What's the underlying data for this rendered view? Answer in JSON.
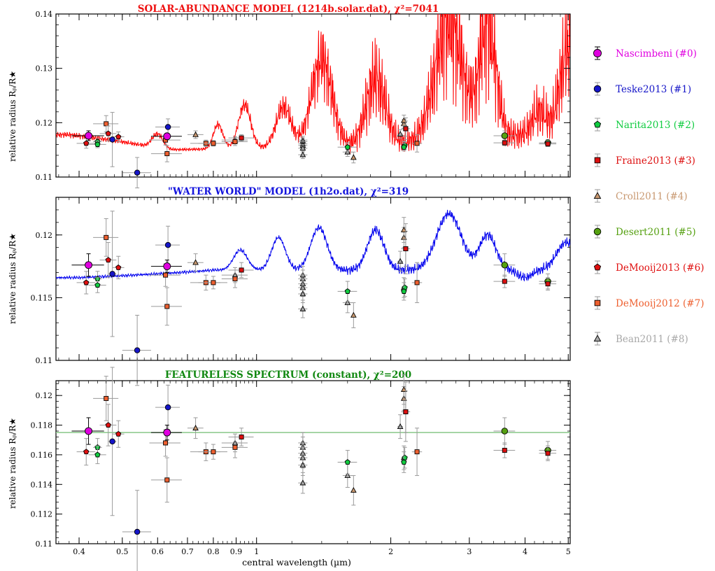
{
  "chart_data": {
    "type": "scatter",
    "xlabel": "central wavelength (µm)",
    "x_scale": "log",
    "xlim": [
      0.355,
      5.05
    ],
    "x_ticks": [
      0.4,
      0.5,
      0.6,
      0.7,
      0.8,
      0.9,
      1,
      2,
      3,
      4,
      5
    ],
    "x_tick_labels": [
      "0.4",
      "0.5",
      "0.6",
      "0.7",
      "0.8",
      "0.9",
      "1",
      "2",
      "3",
      "4",
      "5"
    ],
    "ylabel": "relative radius Rₚ/R★",
    "legend_position": "right",
    "legend": [
      {
        "label": "Nascimbeni (#0)",
        "color": "#e000e0",
        "marker": "circle"
      },
      {
        "label": "Teske2013 (#1)",
        "color": "#1515c8",
        "marker": "circle"
      },
      {
        "label": "Narita2013 (#2)",
        "color": "#10cc40",
        "marker": "pentagon"
      },
      {
        "label": "Fraine2013 (#3)",
        "color": "#dd1010",
        "marker": "square"
      },
      {
        "label": "Croll2011 (#4)",
        "color": "#c89870",
        "marker": "triangle"
      },
      {
        "label": "Desert2011 (#5)",
        "color": "#55a010",
        "marker": "circle"
      },
      {
        "label": "DeMooij2013 (#6)",
        "color": "#e01010",
        "marker": "pentagon"
      },
      {
        "label": "DeMooij2012 (#7)",
        "color": "#ee6030",
        "marker": "square"
      },
      {
        "label": "Bean2011 (#8)",
        "color": "#a8a8a8",
        "marker": "triangle"
      }
    ],
    "panels": [
      {
        "title": "SOLAR-ABUNDANCE MODEL (1214b.solar.dat), χ²=7041",
        "title_color": "#ee1111",
        "ylim": [
          0.11,
          0.14
        ],
        "y_ticks": [
          0.11,
          0.12,
          0.13,
          0.14
        ],
        "y_tick_labels": [
          "0.11",
          "0.12",
          "0.13",
          "0.14"
        ],
        "model": {
          "kind": "solar",
          "color": "#ff0000"
        }
      },
      {
        "title": "\"WATER WORLD\" MODEL (1h2o.dat), χ²=319",
        "title_color": "#1515dd",
        "ylim": [
          0.11,
          0.123
        ],
        "y_ticks": [
          0.11,
          0.115,
          0.12
        ],
        "y_tick_labels": [
          "0.11",
          "0.115",
          "0.12"
        ],
        "model": {
          "kind": "water",
          "color": "#0000ee"
        }
      },
      {
        "title": "FEATURELESS SPECTRUM (constant), χ²=200",
        "title_color": "#118811",
        "ylim": [
          0.11,
          0.121
        ],
        "y_ticks": [
          0.11,
          0.112,
          0.114,
          0.116,
          0.118,
          0.12
        ],
        "y_tick_labels": [
          "0.11",
          "0.112",
          "0.114",
          "0.116",
          "0.118",
          "0.12"
        ],
        "model": {
          "kind": "constant",
          "value": 0.1175,
          "color": "#88c888"
        }
      }
    ],
    "measurements": [
      {
        "set": 0,
        "x": 0.42,
        "xerr": 0.035,
        "y": 0.1176,
        "yerr": 0.0009
      },
      {
        "set": 0,
        "x": 0.63,
        "xerr": 0.05,
        "y": 0.1175,
        "yerr": 0.0005
      },
      {
        "set": 1,
        "x": 0.54,
        "xerr": 0.04,
        "y": 0.1108,
        "yerr": 0.0028
      },
      {
        "set": 1,
        "x": 0.475,
        "xerr": 0.01,
        "y": 0.1169,
        "yerr": 0.005
      },
      {
        "set": 1,
        "x": 0.633,
        "xerr": 0.04,
        "y": 0.1192,
        "yerr": 0.0015
      },
      {
        "set": 2,
        "x": 0.44,
        "xerr": 0.01,
        "y": 0.1165,
        "yerr": 0.0006
      },
      {
        "set": 2,
        "x": 0.44,
        "xerr": 0.02,
        "y": 0.116,
        "yerr": 0.0006
      },
      {
        "set": 2,
        "x": 1.6,
        "xerr": 0.08,
        "y": 0.1155,
        "yerr": 0.0008
      },
      {
        "set": 2,
        "x": 2.15,
        "xerr": 0.03,
        "y": 0.1158,
        "yerr": 0.0007
      },
      {
        "set": 2,
        "x": 2.14,
        "xerr": 0.03,
        "y": 0.1155,
        "yerr": 0.0007
      },
      {
        "set": 3,
        "x": 0.925,
        "xerr": 0.06,
        "y": 0.1172,
        "yerr": 0.0006
      },
      {
        "set": 3,
        "x": 2.16,
        "xerr": 0.04,
        "y": 0.1189,
        "yerr": 0.002
      },
      {
        "set": 3,
        "x": 3.6,
        "xerr": 0.2,
        "y": 0.1163,
        "yerr": 0.0005
      },
      {
        "set": 3,
        "x": 4.5,
        "xerr": 0.2,
        "y": 0.1161,
        "yerr": 0.0005
      },
      {
        "set": 4,
        "x": 1.65,
        "xerr": 0.01,
        "y": 0.1136,
        "yerr": 0.001
      },
      {
        "set": 4,
        "x": 2.14,
        "xerr": 0.01,
        "y": 0.1198,
        "yerr": 0.0008
      },
      {
        "set": 4,
        "x": 2.14,
        "xerr": 0.01,
        "y": 0.1204,
        "yerr": 0.001
      },
      {
        "set": 4,
        "x": 0.73,
        "xerr": 0.03,
        "y": 0.1178,
        "yerr": 0.0007
      },
      {
        "set": 5,
        "x": 3.6,
        "xerr": 0.2,
        "y": 0.1176,
        "yerr": 0.0009
      },
      {
        "set": 5,
        "x": 4.5,
        "xerr": 0.2,
        "y": 0.1163,
        "yerr": 0.0006
      },
      {
        "set": 6,
        "x": 0.415,
        "xerr": 0.02,
        "y": 0.1162,
        "yerr": 0.0009
      },
      {
        "set": 6,
        "x": 0.465,
        "xerr": 0.02,
        "y": 0.118,
        "yerr": 0.0014
      },
      {
        "set": 6,
        "x": 0.49,
        "xerr": 0.015,
        "y": 0.1174,
        "yerr": 0.0009
      },
      {
        "set": 7,
        "x": 0.46,
        "xerr": 0.03,
        "y": 0.1198,
        "yerr": 0.0015
      },
      {
        "set": 7,
        "x": 0.625,
        "xerr": 0.05,
        "y": 0.1168,
        "yerr": 0.0009
      },
      {
        "set": 7,
        "x": 0.63,
        "xerr": 0.05,
        "y": 0.1143,
        "yerr": 0.0015
      },
      {
        "set": 7,
        "x": 0.77,
        "xerr": 0.06,
        "y": 0.1162,
        "yerr": 0.0006
      },
      {
        "set": 7,
        "x": 0.8,
        "xerr": 0.06,
        "y": 0.1162,
        "yerr": 0.0005
      },
      {
        "set": 7,
        "x": 0.895,
        "xerr": 0.06,
        "y": 0.1165,
        "yerr": 0.0007
      },
      {
        "set": 7,
        "x": 2.29,
        "xerr": 0.06,
        "y": 0.1162,
        "yerr": 0.0016
      },
      {
        "set": 7,
        "x": 2.16,
        "xerr": 0.05,
        "y": 0.1189,
        "yerr": 0.0014
      },
      {
        "set": 8,
        "x": 0.895,
        "xerr": 0.06,
        "y": 0.1168,
        "yerr": 0.0006
      },
      {
        "set": 8,
        "x": 1.27,
        "xerr": 0.03,
        "y": 0.1168,
        "yerr": 0.0007
      },
      {
        "set": 8,
        "x": 1.27,
        "xerr": 0.03,
        "y": 0.1165,
        "yerr": 0.0007
      },
      {
        "set": 8,
        "x": 1.27,
        "xerr": 0.03,
        "y": 0.1161,
        "yerr": 0.0007
      },
      {
        "set": 8,
        "x": 1.27,
        "xerr": 0.03,
        "y": 0.1158,
        "yerr": 0.0007
      },
      {
        "set": 8,
        "x": 1.27,
        "xerr": 0.03,
        "y": 0.1153,
        "yerr": 0.0007
      },
      {
        "set": 8,
        "x": 1.27,
        "xerr": 0.03,
        "y": 0.1141,
        "yerr": 0.0007
      },
      {
        "set": 8,
        "x": 1.6,
        "xerr": 0.04,
        "y": 0.1146,
        "yerr": 0.0008
      },
      {
        "set": 8,
        "x": 2.1,
        "xerr": 0.03,
        "y": 0.1179,
        "yerr": 0.0008
      },
      {
        "set": 8,
        "x": 2.14,
        "xerr": 0.03,
        "y": 0.1158,
        "yerr": 0.0008
      }
    ]
  }
}
